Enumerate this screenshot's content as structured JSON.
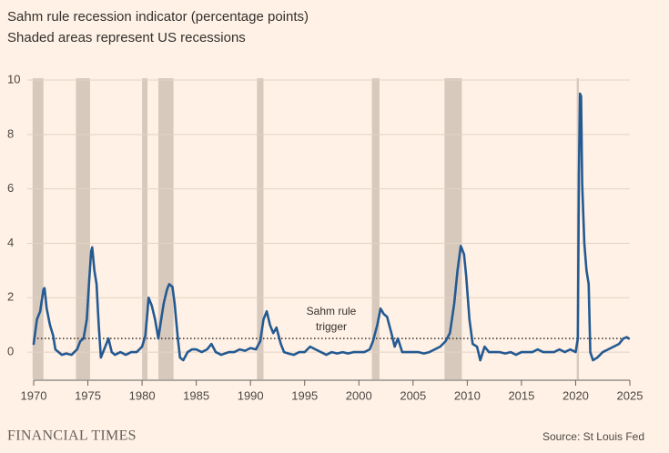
{
  "chart_data": {
    "type": "line",
    "title": "Sahm rule recession indicator (percentage points)",
    "subtitle": "Shaded areas represent US recessions",
    "annotation": [
      "Sahm rule",
      "trigger"
    ],
    "threshold": 0.5,
    "recessions": [
      [
        1969.9,
        1970.9
      ],
      [
        1973.9,
        1975.2
      ],
      [
        1980.0,
        1980.5
      ],
      [
        1981.5,
        1982.9
      ],
      [
        1990.6,
        1991.2
      ],
      [
        2001.2,
        2001.9
      ],
      [
        2007.9,
        2009.5
      ],
      [
        2020.1,
        2020.3
      ]
    ],
    "recession_color": "#d8c9bd",
    "xlim": [
      1970,
      2025
    ],
    "xticks": [
      1970,
      1975,
      1980,
      1985,
      1990,
      1995,
      2000,
      2005,
      2010,
      2015,
      2020,
      2025
    ],
    "ylim": [
      -1,
      10
    ],
    "yticks": [
      0,
      2,
      4,
      6,
      8,
      10
    ],
    "grid": true,
    "series": [
      {
        "color": "#245a92",
        "x": [
          1970.0,
          1970.3,
          1970.6,
          1970.9,
          1971.0,
          1971.2,
          1971.5,
          1971.8,
          1972.0,
          1972.3,
          1972.6,
          1973.0,
          1973.5,
          1974.0,
          1974.3,
          1974.6,
          1974.9,
          1975.1,
          1975.3,
          1975.4,
          1975.6,
          1975.8,
          1976.0,
          1976.2,
          1976.5,
          1976.9,
          1977.2,
          1977.5,
          1978.0,
          1978.5,
          1979.0,
          1979.5,
          1980.0,
          1980.3,
          1980.5,
          1980.6,
          1980.9,
          1981.2,
          1981.5,
          1981.8,
          1982.0,
          1982.3,
          1982.5,
          1982.8,
          1983.0,
          1983.3,
          1983.5,
          1983.8,
          1984.2,
          1984.6,
          1985.0,
          1985.5,
          1986.0,
          1986.4,
          1986.8,
          1987.3,
          1988.0,
          1988.5,
          1989.0,
          1989.5,
          1990.0,
          1990.5,
          1990.9,
          1991.2,
          1991.5,
          1991.8,
          1992.1,
          1992.4,
          1992.8,
          1993.1,
          1993.5,
          1994.0,
          1994.5,
          1995.0,
          1995.5,
          1996.0,
          1996.5,
          1997.0,
          1997.5,
          1998.0,
          1998.5,
          1999.0,
          1999.5,
          2000.0,
          2000.5,
          2001.0,
          2001.3,
          2001.7,
          2002.0,
          2002.3,
          2002.6,
          2003.0,
          2003.3,
          2003.6,
          2004.0,
          2004.5,
          2005.0,
          2005.5,
          2006.0,
          2006.5,
          2007.0,
          2007.5,
          2008.0,
          2008.4,
          2008.8,
          2009.1,
          2009.4,
          2009.7,
          2009.9,
          2010.2,
          2010.5,
          2010.9,
          2011.2,
          2011.6,
          2012.0,
          2012.5,
          2013.0,
          2013.5,
          2014.0,
          2014.5,
          2015.0,
          2015.5,
          2016.0,
          2016.5,
          2017.0,
          2017.5,
          2018.0,
          2018.5,
          2019.0,
          2019.5,
          2020.0,
          2020.2,
          2020.3,
          2020.4,
          2020.5,
          2020.6,
          2020.8,
          2021.0,
          2021.2,
          2021.35,
          2021.6,
          2022.0,
          2022.5,
          2023.0,
          2023.5,
          2024.0,
          2024.4,
          2024.7,
          2024.9
        ],
        "values": [
          0.3,
          1.2,
          1.5,
          2.3,
          2.35,
          1.6,
          1.0,
          0.6,
          0.1,
          0.0,
          -0.1,
          -0.05,
          -0.1,
          0.1,
          0.4,
          0.5,
          1.2,
          2.5,
          3.7,
          3.85,
          3.0,
          2.5,
          1.0,
          -0.2,
          0.1,
          0.5,
          0.0,
          -0.1,
          0.0,
          -0.1,
          0.0,
          0.0,
          0.2,
          0.6,
          1.5,
          2.0,
          1.7,
          1.2,
          0.5,
          1.3,
          1.8,
          2.3,
          2.5,
          2.4,
          1.8,
          0.5,
          -0.2,
          -0.3,
          0.0,
          0.1,
          0.1,
          0.0,
          0.1,
          0.3,
          0.0,
          -0.1,
          0.0,
          0.0,
          0.1,
          0.05,
          0.15,
          0.1,
          0.4,
          1.2,
          1.5,
          1.0,
          0.7,
          0.9,
          0.3,
          0.0,
          -0.05,
          -0.1,
          0.0,
          0.0,
          0.2,
          0.1,
          0.0,
          -0.1,
          0.0,
          -0.05,
          0.0,
          -0.05,
          0.0,
          0.0,
          0.0,
          0.1,
          0.4,
          1.0,
          1.6,
          1.4,
          1.3,
          0.7,
          0.2,
          0.5,
          0.0,
          0.0,
          0.0,
          0.0,
          -0.05,
          0.0,
          0.1,
          0.2,
          0.4,
          0.7,
          1.8,
          3.0,
          3.9,
          3.6,
          2.8,
          1.2,
          0.3,
          0.2,
          -0.3,
          0.2,
          0.0,
          0.0,
          0.0,
          -0.05,
          0.0,
          -0.1,
          0.0,
          0.0,
          0.0,
          0.1,
          0.0,
          0.0,
          0.0,
          0.1,
          0.0,
          0.1,
          0.0,
          0.5,
          6.5,
          9.5,
          9.4,
          6.2,
          4.0,
          3.0,
          2.5,
          0.0,
          -0.3,
          -0.2,
          0.0,
          0.1,
          0.2,
          0.3,
          0.5,
          0.55,
          0.5
        ]
      }
    ],
    "brand": "FINANCIAL TIMES",
    "source": "Source: St Louis Fed"
  }
}
